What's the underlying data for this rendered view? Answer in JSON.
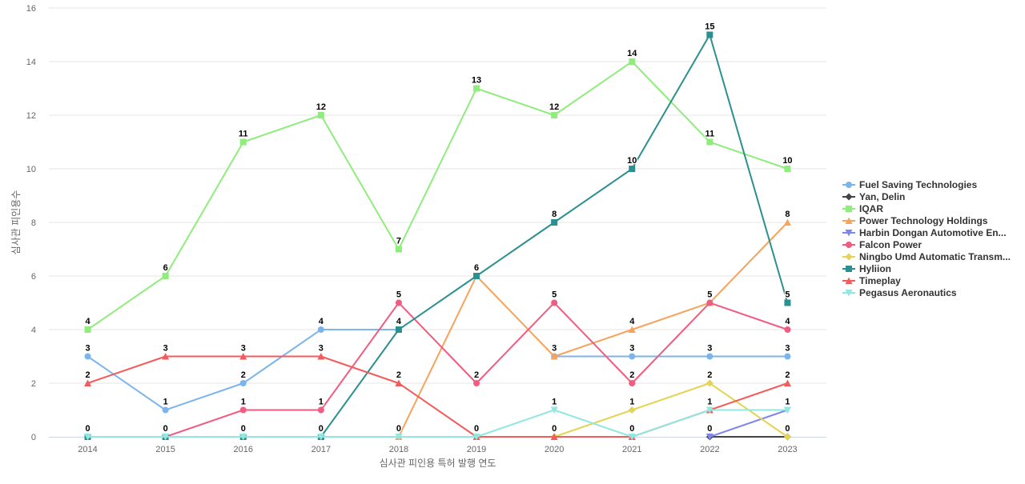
{
  "chart_data": {
    "type": "line",
    "title": "",
    "xlabel": "심사관 피인용 특허 발행 연도",
    "ylabel": "심사관 피인용수",
    "x": [
      2014,
      2015,
      2016,
      2017,
      2018,
      2019,
      2020,
      2021,
      2022,
      2023
    ],
    "ylim": [
      0,
      16
    ],
    "yticks": [
      0,
      2,
      4,
      6,
      8,
      10,
      12,
      14,
      16
    ],
    "grid": true,
    "legend_position": "right",
    "series": [
      {
        "name": "Fuel Saving Technologies",
        "color": "#7cb5ec",
        "marker": "circle",
        "values": [
          3,
          1,
          2,
          4,
          4,
          null,
          3,
          3,
          3,
          3
        ],
        "labels": [
          3,
          1,
          2,
          4,
          null,
          null,
          3,
          3,
          3,
          3
        ]
      },
      {
        "name": "Yan, Delin",
        "color": "#434348",
        "marker": "diamond",
        "values": [
          null,
          null,
          null,
          null,
          null,
          null,
          null,
          null,
          0,
          0
        ],
        "labels": [
          null,
          null,
          null,
          null,
          null,
          null,
          null,
          null,
          null,
          null
        ]
      },
      {
        "name": "IQAR",
        "color": "#90ed7d",
        "marker": "square",
        "values": [
          4,
          6,
          11,
          12,
          7,
          13,
          12,
          14,
          11,
          10
        ],
        "labels": [
          4,
          6,
          11,
          12,
          7,
          13,
          12,
          14,
          11,
          10
        ]
      },
      {
        "name": "Power Technology Holdings",
        "color": "#f7a35c",
        "marker": "triangle",
        "values": [
          null,
          null,
          null,
          null,
          0,
          6,
          3,
          4,
          5,
          8
        ],
        "labels": [
          null,
          null,
          null,
          null,
          0,
          6,
          null,
          4,
          null,
          8
        ]
      },
      {
        "name": "Harbin Dongan Automotive En...",
        "color": "#8085e9",
        "marker": "triangle-down",
        "values": [
          null,
          null,
          null,
          null,
          null,
          null,
          null,
          null,
          0,
          1
        ],
        "labels": [
          null,
          null,
          null,
          null,
          null,
          null,
          null,
          null,
          0,
          null
        ]
      },
      {
        "name": "Falcon Power",
        "color": "#f15c80",
        "marker": "circle",
        "values": [
          null,
          0,
          1,
          1,
          5,
          2,
          5,
          2,
          5,
          4
        ],
        "labels": [
          null,
          null,
          1,
          1,
          5,
          2,
          5,
          2,
          5,
          4
        ]
      },
      {
        "name": "Ningbo Umd Automatic Transm...",
        "color": "#e4d354",
        "marker": "diamond",
        "values": [
          null,
          null,
          null,
          null,
          null,
          null,
          0,
          1,
          2,
          0
        ],
        "labels": [
          null,
          null,
          null,
          null,
          null,
          null,
          null,
          1,
          2,
          0
        ]
      },
      {
        "name": "Hyliion",
        "color": "#2b908f",
        "marker": "square",
        "values": [
          0,
          0,
          0,
          0,
          4,
          6,
          8,
          10,
          15,
          5
        ],
        "labels": [
          0,
          0,
          0,
          0,
          4,
          null,
          8,
          10,
          15,
          5
        ]
      },
      {
        "name": "Timeplay",
        "color": "#f45b5b",
        "marker": "triangle",
        "values": [
          2,
          3,
          3,
          3,
          2,
          0,
          0,
          0,
          1,
          2
        ],
        "labels": [
          2,
          3,
          3,
          3,
          2,
          0,
          0,
          0,
          1,
          2
        ]
      },
      {
        "name": "Pegasus Aeronautics",
        "color": "#91e8e1",
        "marker": "triangle-down",
        "values": [
          0,
          0,
          0,
          0,
          0,
          0,
          1,
          0,
          1,
          1
        ],
        "labels": [
          null,
          null,
          null,
          null,
          null,
          null,
          1,
          null,
          null,
          1
        ]
      }
    ]
  }
}
